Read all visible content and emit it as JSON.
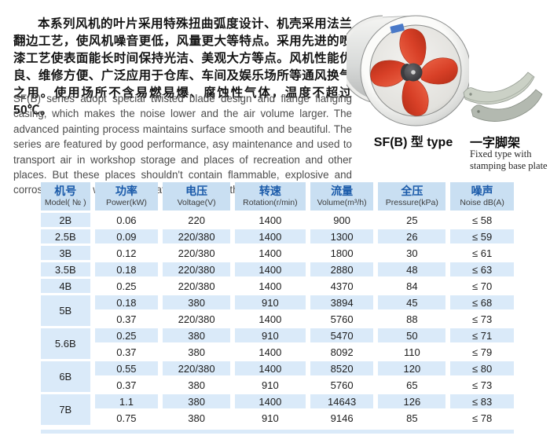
{
  "intro": {
    "chinese": "本系列风机的叶片采用特殊扭曲弧度设计、机壳采用法兰翻边工艺，使风机噪音更低，风量更大等特点。采用先进的喷漆工艺使表面能长时间保持光洁、美观大方等点。风机性能优良、维修方便、广泛应用于仓库、车间及娱乐场所等通风换气之用。使用场所不含易燃易爆、腐蚀性气体，温度不超过50℃。",
    "english": "SF(B) series adopt special twisted blade design and flange flanging casing, which makes the noise lower and the air volume larger. The advanced painting process maintains surface smooth and beautiful. The series are featured by good performance, asy maintenance and used to transport air in workshop storage and places of recreation and other places. But these places shouldn't contain flammable, explosive and corrosive gases, with a temperature no higher than 50℃."
  },
  "figures": {
    "fan_caption": "SF(B) 型 type",
    "bracket_caption_zh": "一字脚架",
    "bracket_caption_en_line1": "Fixed type with",
    "bracket_caption_en_line2": "stamping base plate"
  },
  "table": {
    "columns": [
      {
        "zh": "机号",
        "en": "Model( № )"
      },
      {
        "zh": "功率",
        "en": "Power(kW)"
      },
      {
        "zh": "电压",
        "en": "Voltage(V)"
      },
      {
        "zh": "转速",
        "en": "Rotation(r/min)"
      },
      {
        "zh": "流量",
        "en": "Volume(m³/h)"
      },
      {
        "zh": "全压",
        "en": "Pressure(kPa)"
      },
      {
        "zh": "噪声",
        "en": "Noise dB(A)"
      }
    ],
    "groups": [
      {
        "model": "2B",
        "rows": [
          [
            "0.06",
            "220",
            "1400",
            "900",
            "25",
            "≤ 58"
          ]
        ],
        "shaded": [
          false
        ]
      },
      {
        "model": "2.5B",
        "rows": [
          [
            "0.09",
            "220/380",
            "1400",
            "1300",
            "26",
            "≤ 59"
          ]
        ],
        "shaded": [
          true
        ]
      },
      {
        "model": "3B",
        "rows": [
          [
            "0.12",
            "220/380",
            "1400",
            "1800",
            "30",
            "≤ 61"
          ]
        ],
        "shaded": [
          false
        ]
      },
      {
        "model": "3.5B",
        "rows": [
          [
            "0.18",
            "220/380",
            "1400",
            "2880",
            "48",
            "≤ 63"
          ]
        ],
        "shaded": [
          true
        ]
      },
      {
        "model": "4B",
        "rows": [
          [
            "0.25",
            "220/380",
            "1400",
            "4370",
            "84",
            "≤ 70"
          ]
        ],
        "shaded": [
          false
        ]
      },
      {
        "model": "5B",
        "rows": [
          [
            "0.18",
            "380",
            "910",
            "3894",
            "45",
            "≤ 68"
          ],
          [
            "0.37",
            "220/380",
            "1400",
            "5760",
            "88",
            "≤ 73"
          ]
        ],
        "shaded": [
          true,
          false
        ]
      },
      {
        "model": "5.6B",
        "rows": [
          [
            "0.25",
            "380",
            "910",
            "5470",
            "50",
            "≤ 71"
          ],
          [
            "0.37",
            "380",
            "1400",
            "8092",
            "110",
            "≤ 79"
          ]
        ],
        "shaded": [
          true,
          false
        ]
      },
      {
        "model": "6B",
        "rows": [
          [
            "0.55",
            "220/380",
            "1400",
            "8520",
            "120",
            "≤ 80"
          ],
          [
            "0.37",
            "380",
            "910",
            "5760",
            "65",
            "≤ 73"
          ]
        ],
        "shaded": [
          true,
          false
        ]
      },
      {
        "model": "7B",
        "rows": [
          [
            "1.1",
            "380",
            "1400",
            "14643",
            "126",
            "≤ 83"
          ],
          [
            "0.75",
            "380",
            "910",
            "9146",
            "85",
            "≤ 78"
          ]
        ],
        "shaded": [
          true,
          false
        ]
      }
    ]
  },
  "colors": {
    "header_bg": "#c9dff2",
    "row_shade_bg": "#daeaf9",
    "header_text_blue": "#1a5aa9",
    "blade_red": "#d63d24",
    "casing_silver": "#c7c9c8"
  }
}
